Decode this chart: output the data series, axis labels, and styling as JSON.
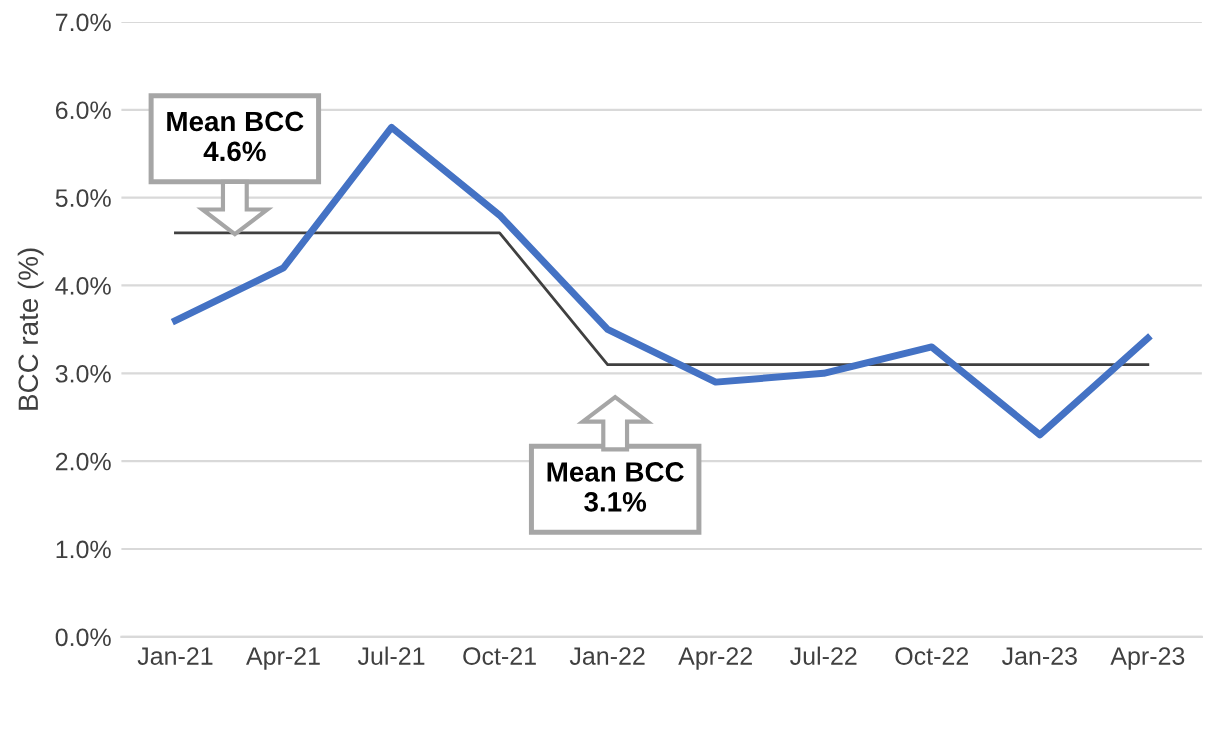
{
  "chart_data": {
    "type": "line",
    "ylabel": "BCC rate (%)",
    "categories": [
      "Jan-21",
      "Apr-21",
      "Jul-21",
      "Oct-21",
      "Jan-22",
      "Apr-22",
      "Jul-22",
      "Oct-22",
      "Jan-23",
      "Apr-23"
    ],
    "series": [
      {
        "color": "#4472c4",
        "values": [
          3.6,
          4.2,
          5.8,
          4.8,
          3.5,
          2.9,
          3.0,
          3.3,
          2.3,
          3.4
        ]
      },
      {
        "color": "#404040",
        "values": [
          4.6,
          4.6,
          4.6,
          4.6,
          3.1,
          3.1,
          3.1,
          3.1,
          3.1,
          3.1
        ]
      }
    ],
    "ylim": [
      0,
      7
    ],
    "yticks": [
      {
        "value": 0,
        "label": "0.0%"
      },
      {
        "value": 1,
        "label": "1.0%"
      },
      {
        "value": 2,
        "label": "2.0%"
      },
      {
        "value": 3,
        "label": "3.0%"
      },
      {
        "value": 4,
        "label": "4.0%"
      },
      {
        "value": 5,
        "label": "5.0%"
      },
      {
        "value": 6,
        "label": "6.0%"
      },
      {
        "value": 7,
        "label": "7.0%"
      }
    ],
    "grid": "y",
    "legend": false,
    "marker": "none",
    "line_style": "solid",
    "annotations": [
      "Mean BCC\n4.6%",
      "Mean BCC\n3.1%"
    ]
  }
}
